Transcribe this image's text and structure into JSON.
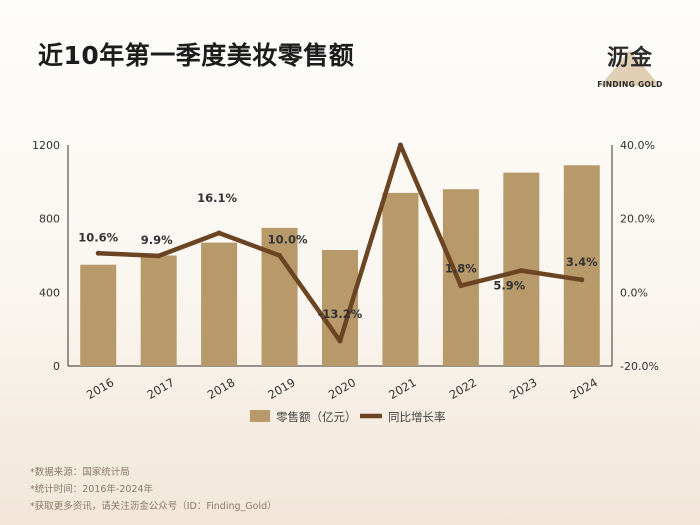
{
  "title": "近10年第一季度美妆零售额",
  "logo": {
    "name_cn": "沥金",
    "name_en": "FINDING GOLD"
  },
  "notes": [
    "*数据来源：国家统计局",
    "*统计时间：2016年-2024年",
    "*获取更多资讯，请关注沥金公众号（ID：Finding_Gold）"
  ],
  "colors": {
    "bar": "#b8996a",
    "line": "#6b4423",
    "axis": "#333333"
  },
  "chart_data": {
    "type": "bar+line",
    "categories": [
      "2016",
      "2017",
      "2018",
      "2019",
      "2020",
      "2021",
      "2022",
      "2023",
      "2024"
    ],
    "series": [
      {
        "name": "零售额（亿元）",
        "type": "bar",
        "axis": "left",
        "values": [
          550,
          600,
          670,
          750,
          630,
          940,
          960,
          1050,
          1090
        ]
      },
      {
        "name": "同比增长率",
        "type": "line",
        "axis": "right",
        "values": [
          10.6,
          9.9,
          16.1,
          10.0,
          -13.2,
          40.0,
          1.8,
          5.9,
          3.4
        ]
      }
    ],
    "point_labels": [
      "10.6%",
      "9.9%",
      "16.1%",
      "10.0%",
      "-13.2%",
      "",
      "1.8%",
      "5.9%",
      "3.4%"
    ],
    "y_left": {
      "min": 0,
      "max": 1200,
      "ticks": [
        0,
        400,
        800,
        1200
      ],
      "tick_labels": [
        "0",
        "400",
        "800",
        "1200"
      ]
    },
    "y_right": {
      "min": -20,
      "max": 40,
      "ticks": [
        -20,
        0,
        20,
        40
      ],
      "tick_labels": [
        "-20.0%",
        "0.0%",
        "20.0%",
        "40.0%"
      ]
    },
    "legend_position": "bottom",
    "grid": false
  }
}
